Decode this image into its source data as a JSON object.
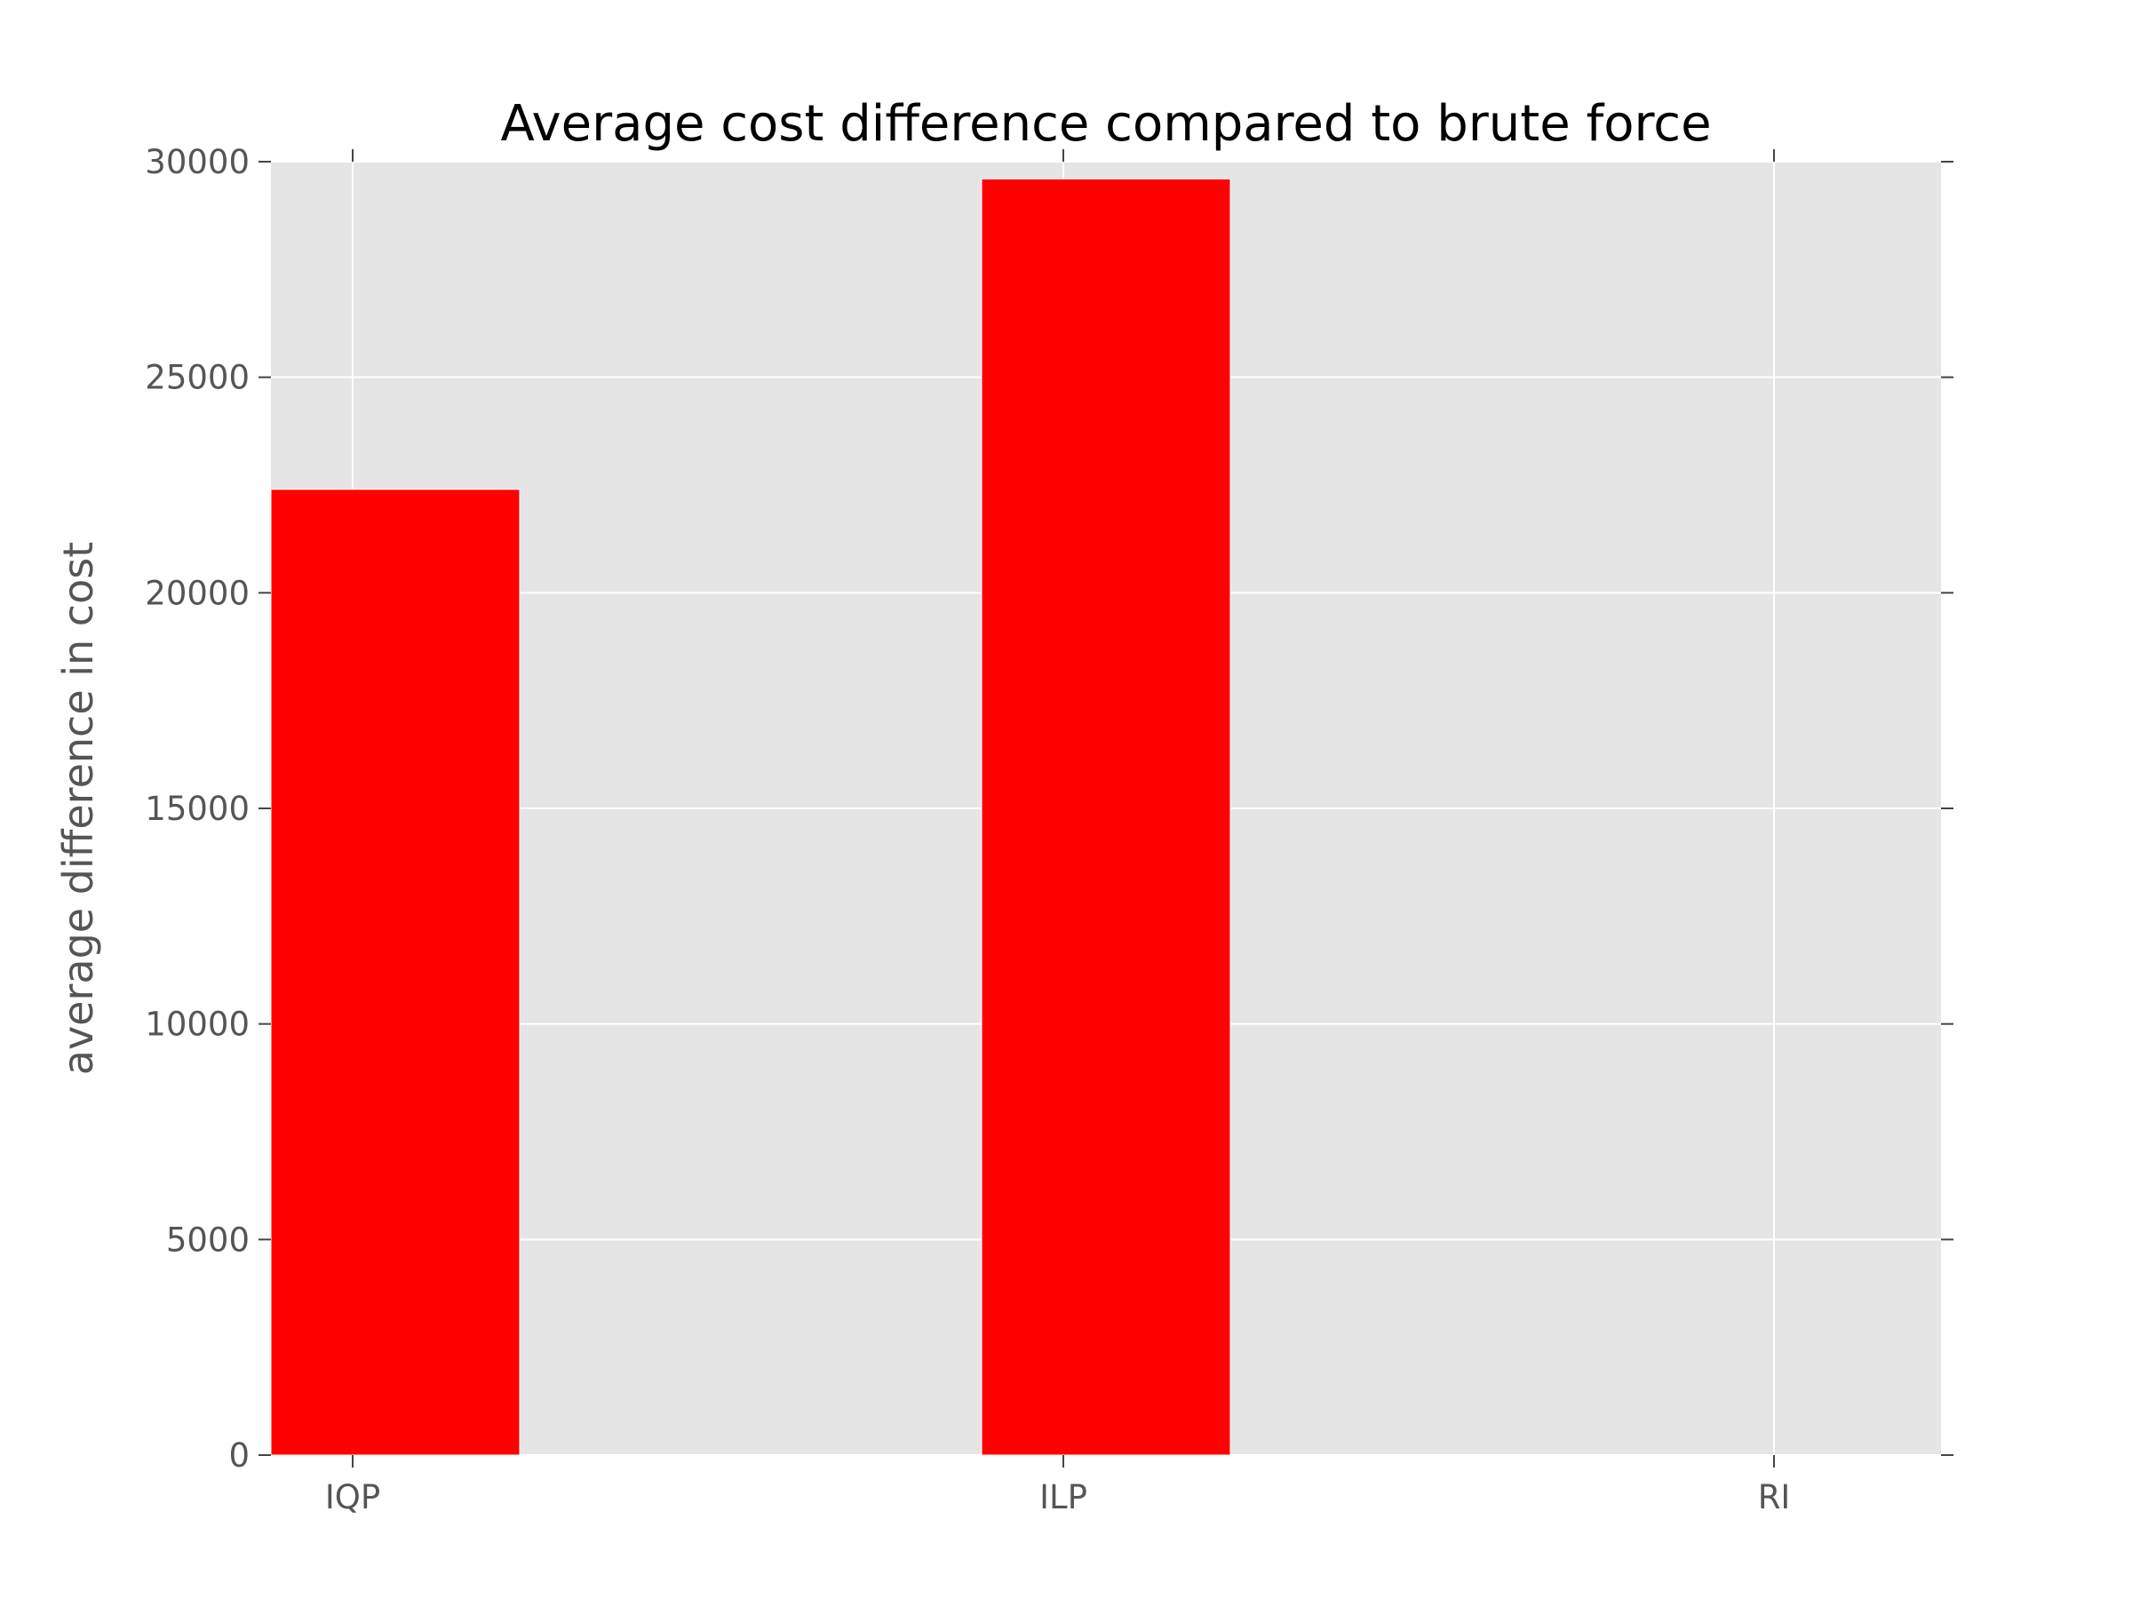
{
  "chart_data": {
    "type": "bar",
    "title": "Average cost difference compared to brute force",
    "xlabel": "",
    "ylabel": "average difference in cost",
    "categories": [
      "IQP",
      "ILP",
      "RI"
    ],
    "values": [
      22400,
      29600,
      0
    ],
    "ylim": [
      0,
      30000
    ],
    "yticks": [
      "0",
      "5000",
      "10000",
      "15000",
      "20000",
      "25000",
      "30000"
    ],
    "grid": true,
    "bar_color": "#ff0000",
    "plot_background": "#e5e5e5",
    "grid_color": "#ffffff"
  }
}
